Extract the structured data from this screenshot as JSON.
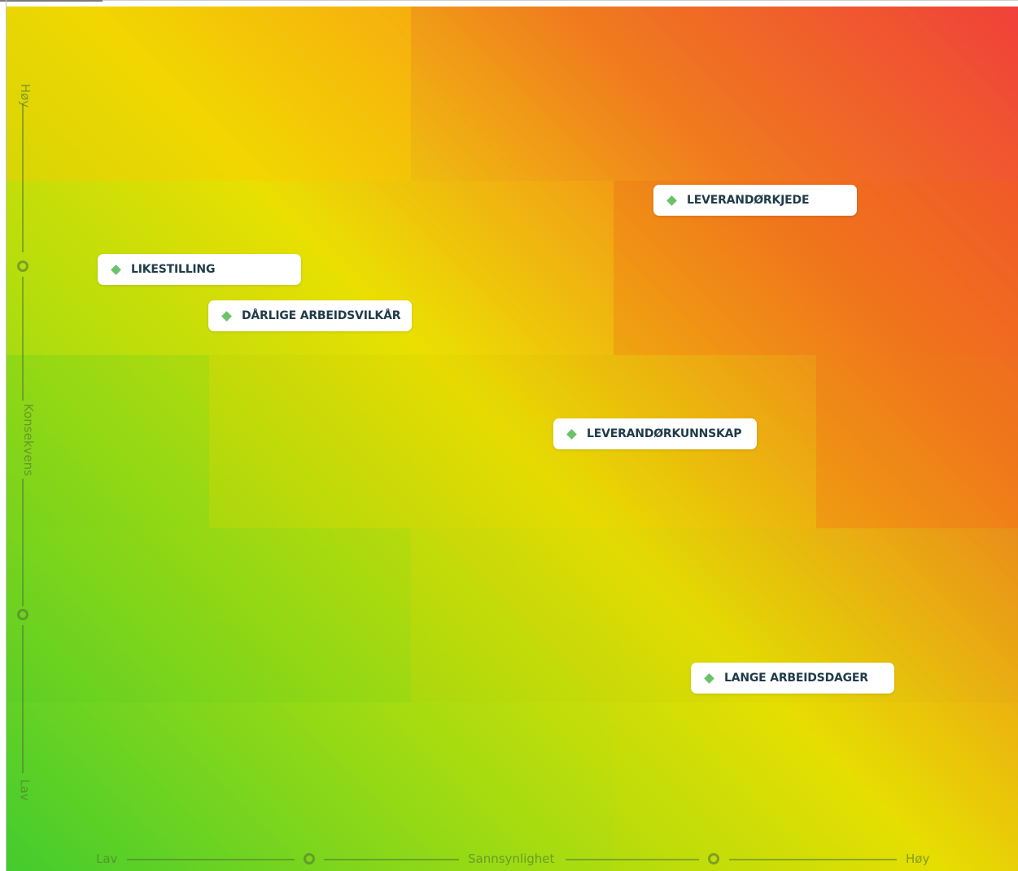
{
  "chart_data": {
    "type": "heatmap",
    "title": "",
    "xlabel": "Sannsynlighet",
    "ylabel": "Konsekvens",
    "x_ticks": [
      "Lav",
      "",
      "Høy"
    ],
    "y_ticks": [
      "Høy",
      "",
      "Lav"
    ],
    "grid": "5x5 risk matrix, colour from green (low risk, bottom-left) through yellow to red (high risk, top-right)",
    "legend": "none",
    "colors": {
      "low": "#43cc2e",
      "medium": "#e8de02",
      "high": "#f0413a"
    },
    "points": [
      {
        "label": "LEVERANDØRKJEDE",
        "x": 4.2,
        "y": 4.0
      },
      {
        "label": "LIKESTILLING",
        "x": 1.5,
        "y": 3.6
      },
      {
        "label": "DÅRLIGE ARBEIDSVILKÅR",
        "x": 2.0,
        "y": 3.4
      },
      {
        "label": "LEVERANDØRKUNNSKAP",
        "x": 3.7,
        "y": 2.7
      },
      {
        "label": "LANGE ARBEIDSDAGER",
        "x": 4.4,
        "y": 1.3
      }
    ]
  }
}
